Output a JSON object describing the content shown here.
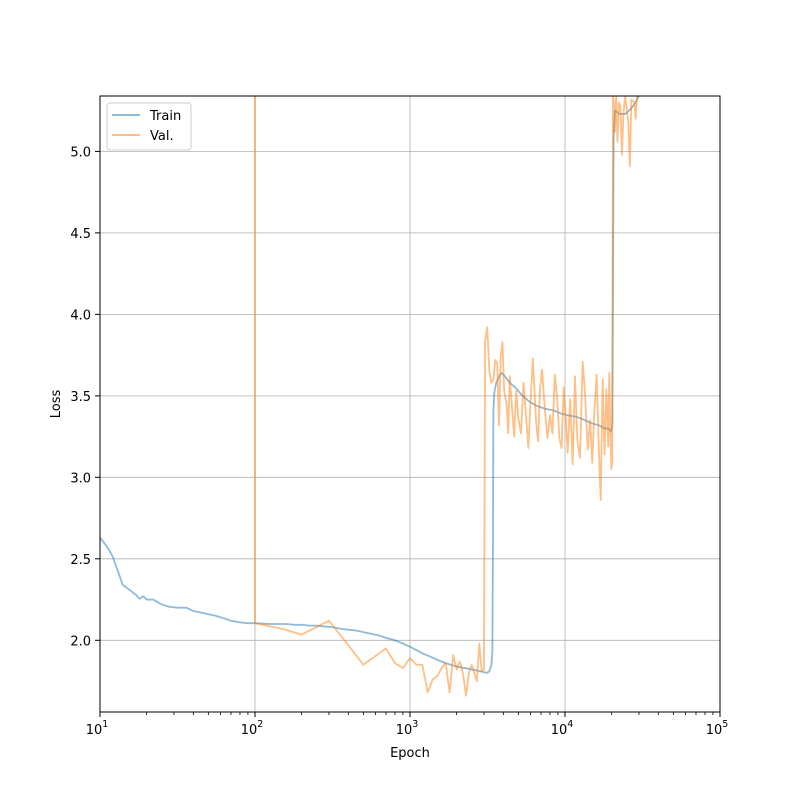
{
  "chart_data": {
    "type": "line",
    "title": "",
    "xlabel": "Epoch",
    "ylabel": "Loss",
    "xscale": "log",
    "xlim": [
      10,
      100000
    ],
    "ylim": [
      1.56,
      5.34
    ],
    "grid": true,
    "legend_position": "top-left",
    "x_ticks": [
      {
        "value": 10,
        "base": "10",
        "exp": "1"
      },
      {
        "value": 100,
        "base": "10",
        "exp": "2"
      },
      {
        "value": 1000,
        "base": "10",
        "exp": "3"
      },
      {
        "value": 10000,
        "base": "10",
        "exp": "4"
      },
      {
        "value": 100000,
        "base": "10",
        "exp": "5"
      }
    ],
    "y_ticks": [
      {
        "value": 2.0,
        "label": "2.0"
      },
      {
        "value": 2.5,
        "label": "2.5"
      },
      {
        "value": 3.0,
        "label": "3.0"
      },
      {
        "value": 3.5,
        "label": "3.5"
      },
      {
        "value": 4.0,
        "label": "4.0"
      },
      {
        "value": 4.5,
        "label": "4.5"
      },
      {
        "value": 5.0,
        "label": "5.0"
      }
    ],
    "series": [
      {
        "name": "Train",
        "color": "#1f77b4",
        "opacity": 0.5,
        "points": [
          [
            10,
            2.63
          ],
          [
            11,
            2.58
          ],
          [
            12,
            2.52
          ],
          [
            13,
            2.43
          ],
          [
            14,
            2.34
          ],
          [
            15,
            2.32
          ],
          [
            16,
            2.3
          ],
          [
            17,
            2.28
          ],
          [
            18,
            2.255
          ],
          [
            19,
            2.27
          ],
          [
            20,
            2.25
          ],
          [
            22,
            2.25
          ],
          [
            25,
            2.22
          ],
          [
            28,
            2.205
          ],
          [
            32,
            2.2
          ],
          [
            36,
            2.2
          ],
          [
            40,
            2.18
          ],
          [
            45,
            2.17
          ],
          [
            50,
            2.16
          ],
          [
            56,
            2.15
          ],
          [
            63,
            2.135
          ],
          [
            70,
            2.12
          ],
          [
            80,
            2.11
          ],
          [
            90,
            2.105
          ],
          [
            100,
            2.105
          ],
          [
            110,
            2.103
          ],
          [
            125,
            2.1
          ],
          [
            140,
            2.1
          ],
          [
            160,
            2.1
          ],
          [
            180,
            2.095
          ],
          [
            200,
            2.095
          ],
          [
            225,
            2.09
          ],
          [
            250,
            2.09
          ],
          [
            280,
            2.085
          ],
          [
            320,
            2.08
          ],
          [
            360,
            2.07
          ],
          [
            400,
            2.065
          ],
          [
            450,
            2.06
          ],
          [
            500,
            2.05
          ],
          [
            560,
            2.04
          ],
          [
            630,
            2.03
          ],
          [
            700,
            2.015
          ],
          [
            800,
            2.0
          ],
          [
            900,
            1.98
          ],
          [
            1000,
            1.96
          ],
          [
            1100,
            1.94
          ],
          [
            1200,
            1.92
          ],
          [
            1350,
            1.9
          ],
          [
            1500,
            1.88
          ],
          [
            1700,
            1.86
          ],
          [
            1900,
            1.845
          ],
          [
            2100,
            1.835
          ],
          [
            2400,
            1.825
          ],
          [
            2700,
            1.815
          ],
          [
            3000,
            1.805
          ],
          [
            3150,
            1.8
          ],
          [
            3250,
            1.81
          ],
          [
            3350,
            1.85
          ],
          [
            3400,
            1.93
          ],
          [
            3430,
            2.6
          ],
          [
            3450,
            3.4
          ],
          [
            3500,
            3.52
          ],
          [
            3600,
            3.58
          ],
          [
            3800,
            3.63
          ],
          [
            3900,
            3.64
          ],
          [
            4100,
            3.62
          ],
          [
            4400,
            3.58
          ],
          [
            4800,
            3.55
          ],
          [
            5200,
            3.51
          ],
          [
            5800,
            3.47
          ],
          [
            6500,
            3.44
          ],
          [
            7500,
            3.42
          ],
          [
            8500,
            3.41
          ],
          [
            9500,
            3.39
          ],
          [
            10500,
            3.38
          ],
          [
            12000,
            3.37
          ],
          [
            13500,
            3.35
          ],
          [
            15000,
            3.33
          ],
          [
            16500,
            3.32
          ],
          [
            18000,
            3.3
          ],
          [
            19000,
            3.3
          ],
          [
            19800,
            3.28
          ],
          [
            20200,
            3.32
          ],
          [
            20600,
            5.1
          ],
          [
            21000,
            5.25
          ],
          [
            22500,
            5.23
          ],
          [
            24500,
            5.23
          ],
          [
            26500,
            5.26
          ],
          [
            28500,
            5.3
          ],
          [
            30000,
            5.34
          ]
        ]
      },
      {
        "name": "Val.",
        "color": "#ff7f0e",
        "opacity": 0.5,
        "points": [
          [
            100,
            5.34
          ],
          [
            100,
            2.105
          ],
          [
            150,
            2.07
          ],
          [
            200,
            2.035
          ],
          [
            300,
            2.12
          ],
          [
            400,
            1.97
          ],
          [
            500,
            1.85
          ],
          [
            700,
            1.95
          ],
          [
            800,
            1.86
          ],
          [
            900,
            1.83
          ],
          [
            1000,
            1.89
          ],
          [
            1100,
            1.85
          ],
          [
            1200,
            1.85
          ],
          [
            1300,
            1.68
          ],
          [
            1400,
            1.76
          ],
          [
            1500,
            1.78
          ],
          [
            1600,
            1.83
          ],
          [
            1700,
            1.86
          ],
          [
            1800,
            1.68
          ],
          [
            1900,
            1.91
          ],
          [
            2000,
            1.82
          ],
          [
            2100,
            1.87
          ],
          [
            2200,
            1.79
          ],
          [
            2300,
            1.66
          ],
          [
            2400,
            1.8
          ],
          [
            2500,
            1.85
          ],
          [
            2700,
            1.75
          ],
          [
            2800,
            1.98
          ],
          [
            2900,
            1.81
          ],
          [
            3000,
            1.82
          ],
          [
            3050,
            3.83
          ],
          [
            3150,
            3.92
          ],
          [
            3250,
            3.65
          ],
          [
            3350,
            3.58
          ],
          [
            3450,
            3.6
          ],
          [
            3550,
            3.72
          ],
          [
            3650,
            3.7
          ],
          [
            3750,
            3.32
          ],
          [
            3850,
            3.75
          ],
          [
            3950,
            3.83
          ],
          [
            4050,
            3.53
          ],
          [
            4200,
            3.45
          ],
          [
            4300,
            3.27
          ],
          [
            4400,
            3.62
          ],
          [
            4550,
            3.43
          ],
          [
            4700,
            3.25
          ],
          [
            4850,
            3.53
          ],
          [
            5000,
            3.36
          ],
          [
            5200,
            3.27
          ],
          [
            5400,
            3.58
          ],
          [
            5600,
            3.38
          ],
          [
            5800,
            3.18
          ],
          [
            6000,
            3.47
          ],
          [
            6200,
            3.73
          ],
          [
            6500,
            3.35
          ],
          [
            6700,
            3.22
          ],
          [
            6900,
            3.54
          ],
          [
            7100,
            3.66
          ],
          [
            7400,
            3.43
          ],
          [
            7700,
            3.24
          ],
          [
            8000,
            3.38
          ],
          [
            8300,
            3.27
          ],
          [
            8600,
            3.63
          ],
          [
            8900,
            3.48
          ],
          [
            9200,
            3.24
          ],
          [
            9500,
            3.18
          ],
          [
            9800,
            3.55
          ],
          [
            10100,
            3.38
          ],
          [
            10400,
            3.15
          ],
          [
            10800,
            3.48
          ],
          [
            11200,
            3.08
          ],
          [
            11600,
            3.62
          ],
          [
            12000,
            3.23
          ],
          [
            12500,
            3.12
          ],
          [
            13000,
            3.71
          ],
          [
            13500,
            3.5
          ],
          [
            14000,
            3.17
          ],
          [
            14500,
            3.35
          ],
          [
            15000,
            3.09
          ],
          [
            15500,
            3.43
          ],
          [
            16000,
            3.63
          ],
          [
            16500,
            3.2
          ],
          [
            17000,
            2.86
          ],
          [
            17500,
            3.6
          ],
          [
            18000,
            3.14
          ],
          [
            18500,
            3.54
          ],
          [
            19000,
            3.19
          ],
          [
            19300,
            3.64
          ],
          [
            19600,
            3.3
          ],
          [
            19900,
            3.05
          ],
          [
            20150,
            3.1
          ],
          [
            20400,
            5.34
          ],
          [
            20700,
            5.3
          ],
          [
            21000,
            5.12
          ],
          [
            21400,
            5.34
          ],
          [
            21800,
            5.06
          ],
          [
            22300,
            5.3
          ],
          [
            22800,
            5.28
          ],
          [
            23300,
            4.98
          ],
          [
            23800,
            5.22
          ],
          [
            24400,
            5.34
          ],
          [
            25000,
            5.27
          ],
          [
            25600,
            5.18
          ],
          [
            26200,
            4.91
          ],
          [
            26800,
            5.32
          ],
          [
            27400,
            5.31
          ],
          [
            28000,
            5.3
          ],
          [
            28600,
            5.2
          ],
          [
            29200,
            5.34
          ],
          [
            30000,
            5.34
          ]
        ]
      }
    ]
  }
}
